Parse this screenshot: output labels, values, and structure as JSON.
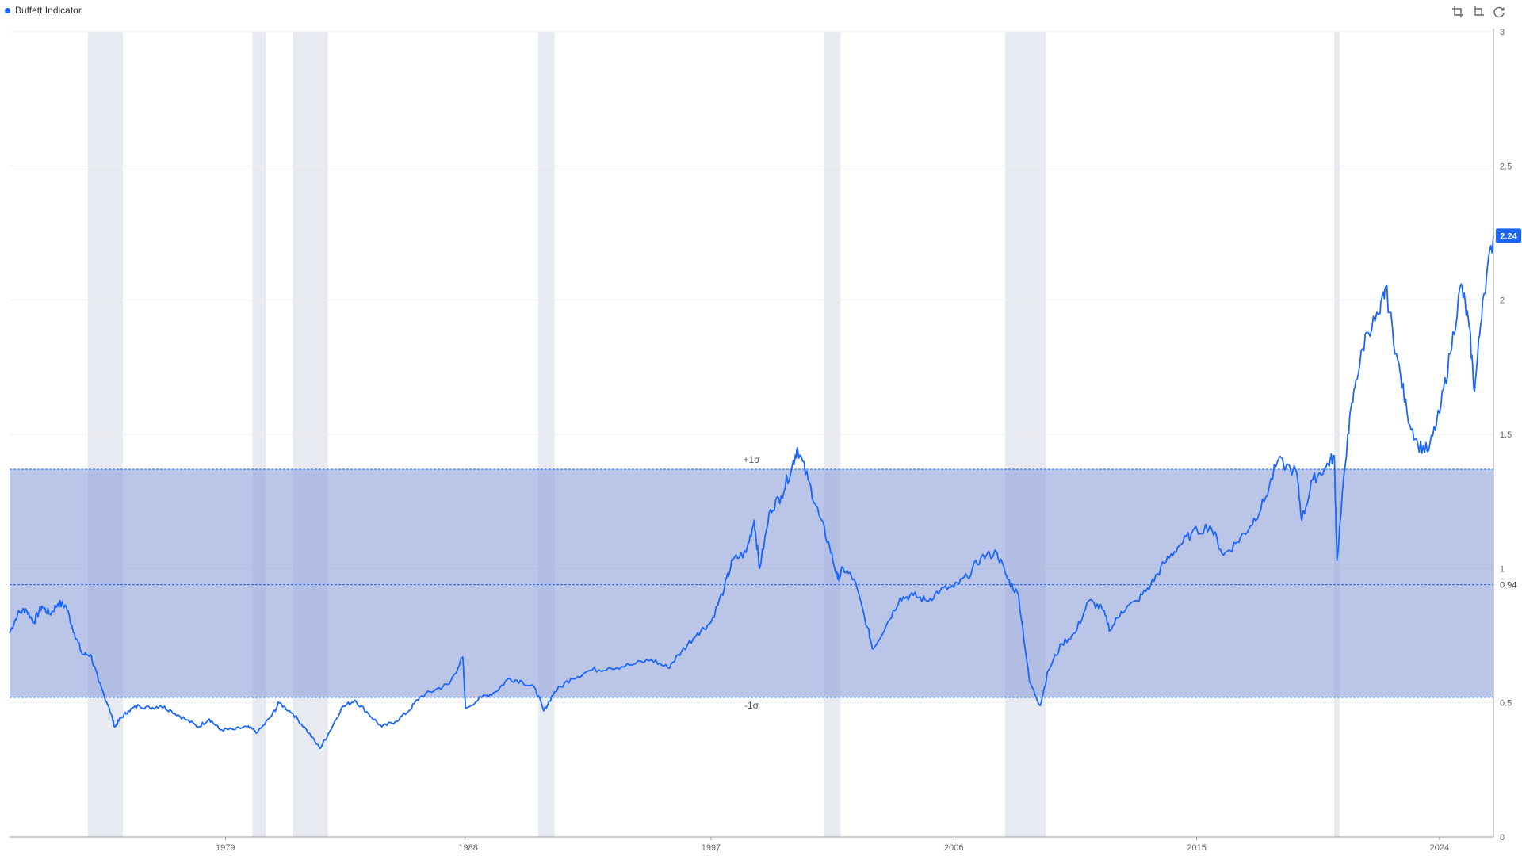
{
  "legend": {
    "label": "Buffett Indicator",
    "color": "#1a66ff"
  },
  "toolbar": {
    "buttons": [
      {
        "icon": "crop-zoom-icon"
      },
      {
        "icon": "crop-reset-icon"
      },
      {
        "icon": "refresh-icon"
      }
    ]
  },
  "chart_data": {
    "type": "line",
    "ylim": [
      0,
      3
    ],
    "x_range": [
      1971,
      2026
    ],
    "y_ticks": [
      "0",
      "0.5",
      "1",
      "1.5",
      "2",
      "2.5",
      "3"
    ],
    "x_ticks": [
      "1979",
      "1988",
      "1997",
      "2006",
      "2015",
      "2024"
    ],
    "x_tick_years": [
      1979,
      1988,
      1997,
      2006,
      2015,
      2024
    ],
    "colors": {
      "line": "#1a66ff",
      "band": "#8d9ed8",
      "recession": "#d4dbe6",
      "mean_line": "#1a66ff",
      "axis": "#999999",
      "grid": "#eeeeee"
    },
    "last_value": "2.24",
    "mean": {
      "value": 0.94,
      "label": "0.94"
    },
    "band": {
      "upper": 1.37,
      "lower": 0.52,
      "upper_label": "+1σ",
      "lower_label": "-1σ"
    },
    "recessions": [
      [
        1973.9,
        1975.2
      ],
      [
        1980.0,
        1980.5
      ],
      [
        1981.5,
        1982.8
      ],
      [
        1990.6,
        1991.2
      ],
      [
        2001.2,
        2001.8
      ],
      [
        2007.9,
        2009.4
      ],
      [
        2020.1,
        2020.3
      ]
    ],
    "series": [
      {
        "name": "Buffett Indicator",
        "points": [
          [
            1971.0,
            0.76
          ],
          [
            1971.3,
            0.83
          ],
          [
            1971.6,
            0.85
          ],
          [
            1971.9,
            0.8
          ],
          [
            1972.2,
            0.86
          ],
          [
            1972.5,
            0.83
          ],
          [
            1972.8,
            0.87
          ],
          [
            1973.1,
            0.86
          ],
          [
            1973.4,
            0.76
          ],
          [
            1973.7,
            0.68
          ],
          [
            1974.0,
            0.68
          ],
          [
            1974.3,
            0.58
          ],
          [
            1974.7,
            0.48
          ],
          [
            1974.9,
            0.41
          ],
          [
            1975.1,
            0.44
          ],
          [
            1975.4,
            0.47
          ],
          [
            1975.8,
            0.49
          ],
          [
            1976.2,
            0.48
          ],
          [
            1976.6,
            0.49
          ],
          [
            1977.0,
            0.47
          ],
          [
            1977.5,
            0.44
          ],
          [
            1978.0,
            0.41
          ],
          [
            1978.4,
            0.44
          ],
          [
            1978.8,
            0.4
          ],
          [
            1979.3,
            0.4
          ],
          [
            1979.8,
            0.41
          ],
          [
            1980.2,
            0.39
          ],
          [
            1980.7,
            0.45
          ],
          [
            1981.0,
            0.5
          ],
          [
            1981.5,
            0.46
          ],
          [
            1982.0,
            0.4
          ],
          [
            1982.5,
            0.33
          ],
          [
            1982.8,
            0.38
          ],
          [
            1983.3,
            0.48
          ],
          [
            1983.8,
            0.51
          ],
          [
            1984.3,
            0.46
          ],
          [
            1984.8,
            0.41
          ],
          [
            1985.3,
            0.43
          ],
          [
            1985.8,
            0.47
          ],
          [
            1986.2,
            0.52
          ],
          [
            1986.8,
            0.55
          ],
          [
            1987.3,
            0.57
          ],
          [
            1987.8,
            0.67
          ],
          [
            1987.9,
            0.48
          ],
          [
            1988.5,
            0.52
          ],
          [
            1989.0,
            0.54
          ],
          [
            1989.5,
            0.59
          ],
          [
            1990.0,
            0.58
          ],
          [
            1990.5,
            0.55
          ],
          [
            1990.8,
            0.47
          ],
          [
            1991.2,
            0.54
          ],
          [
            1991.8,
            0.59
          ],
          [
            1992.5,
            0.62
          ],
          [
            1993.2,
            0.63
          ],
          [
            1994.0,
            0.64
          ],
          [
            1994.8,
            0.66
          ],
          [
            1995.4,
            0.63
          ],
          [
            1995.9,
            0.69
          ],
          [
            1996.5,
            0.76
          ],
          [
            1997.0,
            0.8
          ],
          [
            1997.5,
            0.93
          ],
          [
            1997.8,
            1.03
          ],
          [
            1998.3,
            1.06
          ],
          [
            1998.6,
            1.18
          ],
          [
            1998.8,
            1.0
          ],
          [
            1999.2,
            1.22
          ],
          [
            1999.6,
            1.27
          ],
          [
            2000.0,
            1.38
          ],
          [
            2000.2,
            1.45
          ],
          [
            2000.6,
            1.33
          ],
          [
            2001.0,
            1.2
          ],
          [
            2001.4,
            1.08
          ],
          [
            2001.7,
            0.96
          ],
          [
            2001.9,
            1.0
          ],
          [
            2002.3,
            0.96
          ],
          [
            2002.8,
            0.78
          ],
          [
            2003.0,
            0.7
          ],
          [
            2003.5,
            0.79
          ],
          [
            2004.0,
            0.89
          ],
          [
            2004.5,
            0.9
          ],
          [
            2005.0,
            0.88
          ],
          [
            2005.5,
            0.92
          ],
          [
            2006.0,
            0.93
          ],
          [
            2006.5,
            0.97
          ],
          [
            2007.0,
            1.04
          ],
          [
            2007.6,
            1.06
          ],
          [
            2008.0,
            0.96
          ],
          [
            2008.4,
            0.9
          ],
          [
            2008.8,
            0.58
          ],
          [
            2009.2,
            0.49
          ],
          [
            2009.5,
            0.62
          ],
          [
            2010.0,
            0.72
          ],
          [
            2010.5,
            0.76
          ],
          [
            2011.0,
            0.88
          ],
          [
            2011.5,
            0.85
          ],
          [
            2011.8,
            0.77
          ],
          [
            2012.2,
            0.84
          ],
          [
            2012.8,
            0.88
          ],
          [
            2013.3,
            0.94
          ],
          [
            2013.8,
            1.02
          ],
          [
            2014.3,
            1.08
          ],
          [
            2014.8,
            1.13
          ],
          [
            2015.5,
            1.16
          ],
          [
            2016.0,
            1.05
          ],
          [
            2016.5,
            1.1
          ],
          [
            2017.0,
            1.16
          ],
          [
            2017.5,
            1.25
          ],
          [
            2018.0,
            1.4
          ],
          [
            2018.7,
            1.36
          ],
          [
            2018.9,
            1.18
          ],
          [
            2019.3,
            1.33
          ],
          [
            2019.8,
            1.38
          ],
          [
            2020.1,
            1.42
          ],
          [
            2020.2,
            1.03
          ],
          [
            2020.6,
            1.5
          ],
          [
            2020.9,
            1.7
          ],
          [
            2021.3,
            1.88
          ],
          [
            2021.8,
            1.95
          ],
          [
            2022.0,
            2.05
          ],
          [
            2022.4,
            1.8
          ],
          [
            2022.8,
            1.58
          ],
          [
            2023.2,
            1.46
          ],
          [
            2023.6,
            1.44
          ],
          [
            2024.0,
            1.58
          ],
          [
            2024.4,
            1.8
          ],
          [
            2024.8,
            2.06
          ],
          [
            2025.1,
            1.9
          ],
          [
            2025.3,
            1.66
          ],
          [
            2025.6,
            2.0
          ],
          [
            2026.0,
            2.24
          ]
        ]
      }
    ]
  }
}
